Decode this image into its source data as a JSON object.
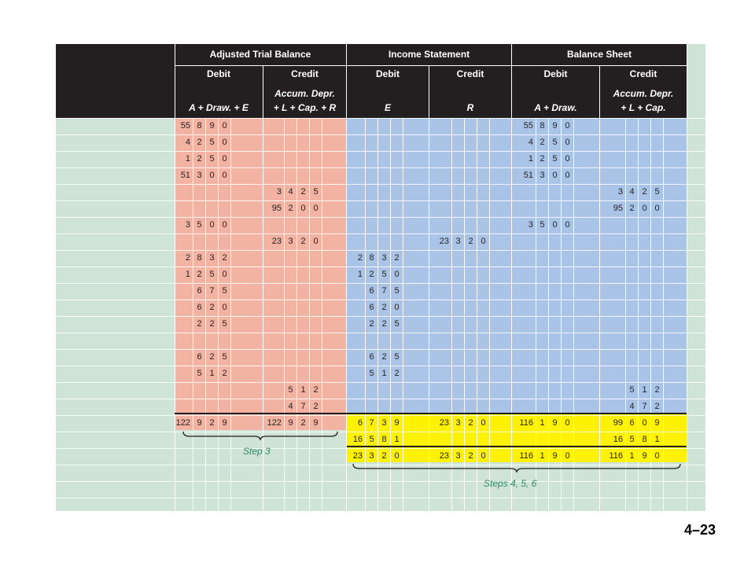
{
  "headers": {
    "atb": "Adjusted Trial Balance",
    "is": "Income Statement",
    "bs": "Balance Sheet",
    "debit": "Debit",
    "credit": "Credit",
    "atb_debit_sub": "A + Draw. + E",
    "atb_credit_sub1": "Accum. Depr.",
    "atb_credit_sub2": "+ L + Cap. + R",
    "is_debit_sub": "E",
    "is_credit_sub": "R",
    "bs_debit_sub": "A + Draw.",
    "bs_credit_sub1": "Accum. Depr.",
    "bs_credit_sub2": "+ L + Cap."
  },
  "rows": [
    {
      "atb_debit": [
        "55",
        "8",
        "9",
        "0"
      ],
      "atb_credit": null,
      "is_debit": null,
      "is_credit": null,
      "bs_debit": [
        "55",
        "8",
        "9",
        "0"
      ],
      "bs_credit": null
    },
    {
      "atb_debit": [
        "4",
        "2",
        "5",
        "0"
      ],
      "atb_credit": null,
      "is_debit": null,
      "is_credit": null,
      "bs_debit": [
        "4",
        "2",
        "5",
        "0"
      ],
      "bs_credit": null
    },
    {
      "atb_debit": [
        "1",
        "2",
        "5",
        "0"
      ],
      "atb_credit": null,
      "is_debit": null,
      "is_credit": null,
      "bs_debit": [
        "1",
        "2",
        "5",
        "0"
      ],
      "bs_credit": null
    },
    {
      "atb_debit": [
        "51",
        "3",
        "0",
        "0"
      ],
      "atb_credit": null,
      "is_debit": null,
      "is_credit": null,
      "bs_debit": [
        "51",
        "3",
        "0",
        "0"
      ],
      "bs_credit": null
    },
    {
      "atb_debit": null,
      "atb_credit": [
        "3",
        "4",
        "2",
        "5"
      ],
      "is_debit": null,
      "is_credit": null,
      "bs_debit": null,
      "bs_credit": [
        "3",
        "4",
        "2",
        "5"
      ]
    },
    {
      "atb_debit": null,
      "atb_credit": [
        "95",
        "2",
        "0",
        "0"
      ],
      "is_debit": null,
      "is_credit": null,
      "bs_debit": null,
      "bs_credit": [
        "95",
        "2",
        "0",
        "0"
      ]
    },
    {
      "atb_debit": [
        "3",
        "5",
        "0",
        "0"
      ],
      "atb_credit": null,
      "is_debit": null,
      "is_credit": null,
      "bs_debit": [
        "3",
        "5",
        "0",
        "0"
      ],
      "bs_credit": null
    },
    {
      "atb_debit": null,
      "atb_credit": [
        "23",
        "3",
        "2",
        "0"
      ],
      "is_debit": null,
      "is_credit": [
        "23",
        "3",
        "2",
        "0"
      ],
      "bs_debit": null,
      "bs_credit": null
    },
    {
      "atb_debit": [
        "2",
        "8",
        "3",
        "2"
      ],
      "atb_credit": null,
      "is_debit": [
        "2",
        "8",
        "3",
        "2"
      ],
      "is_credit": null,
      "bs_debit": null,
      "bs_credit": null
    },
    {
      "atb_debit": [
        "1",
        "2",
        "5",
        "0"
      ],
      "atb_credit": null,
      "is_debit": [
        "1",
        "2",
        "5",
        "0"
      ],
      "is_credit": null,
      "bs_debit": null,
      "bs_credit": null
    },
    {
      "atb_debit": [
        "",
        "6",
        "7",
        "5"
      ],
      "atb_credit": null,
      "is_debit": [
        "",
        "6",
        "7",
        "5"
      ],
      "is_credit": null,
      "bs_debit": null,
      "bs_credit": null
    },
    {
      "atb_debit": [
        "",
        "6",
        "2",
        "0"
      ],
      "atb_credit": null,
      "is_debit": [
        "",
        "6",
        "2",
        "0"
      ],
      "is_credit": null,
      "bs_debit": null,
      "bs_credit": null
    },
    {
      "atb_debit": [
        "",
        "2",
        "2",
        "5"
      ],
      "atb_credit": null,
      "is_debit": [
        "",
        "2",
        "2",
        "5"
      ],
      "is_credit": null,
      "bs_debit": null,
      "bs_credit": null
    },
    {
      "atb_debit": null,
      "atb_credit": null,
      "is_debit": null,
      "is_credit": null,
      "bs_debit": null,
      "bs_credit": null
    },
    {
      "atb_debit": [
        "",
        "6",
        "2",
        "5"
      ],
      "atb_credit": null,
      "is_debit": [
        "",
        "6",
        "2",
        "5"
      ],
      "is_credit": null,
      "bs_debit": null,
      "bs_credit": null
    },
    {
      "atb_debit": [
        "",
        "5",
        "1",
        "2"
      ],
      "atb_credit": null,
      "is_debit": [
        "",
        "5",
        "1",
        "2"
      ],
      "is_credit": null,
      "bs_debit": null,
      "bs_credit": null
    },
    {
      "atb_debit": null,
      "atb_credit": [
        "",
        "5",
        "1",
        "2"
      ],
      "is_debit": null,
      "is_credit": null,
      "bs_debit": null,
      "bs_credit": [
        "",
        "5",
        "1",
        "2"
      ]
    },
    {
      "atb_debit": null,
      "atb_credit": [
        "",
        "4",
        "7",
        "2"
      ],
      "is_debit": null,
      "is_credit": null,
      "bs_debit": null,
      "bs_credit": [
        "",
        "4",
        "7",
        "2"
      ]
    }
  ],
  "totals": [
    {
      "atb_debit": [
        "122",
        "9",
        "2",
        "9"
      ],
      "atb_credit": [
        "122",
        "9",
        "2",
        "9"
      ],
      "is_debit": [
        "6",
        "7",
        "3",
        "9"
      ],
      "is_credit": [
        "23",
        "3",
        "2",
        "0"
      ],
      "bs_debit": [
        "116",
        "1",
        "9",
        "0"
      ],
      "bs_credit": [
        "99",
        "6",
        "0",
        "9"
      ]
    },
    {
      "atb_debit": null,
      "atb_credit": null,
      "is_debit": [
        "16",
        "5",
        "8",
        "1"
      ],
      "is_credit": null,
      "bs_debit": null,
      "bs_credit": [
        "16",
        "5",
        "8",
        "1"
      ]
    },
    {
      "atb_debit": null,
      "atb_credit": null,
      "is_debit": [
        "23",
        "3",
        "2",
        "0"
      ],
      "is_credit": [
        "23",
        "3",
        "2",
        "0"
      ],
      "bs_debit": [
        "116",
        "1",
        "9",
        "0"
      ],
      "bs_credit": [
        "116",
        "1",
        "9",
        "0"
      ]
    }
  ],
  "labels": {
    "step3": "Step 3",
    "steps456": "Steps 4, 5, 6"
  },
  "slide_number": "4–23",
  "colors": {
    "header": "#231f20",
    "atb_fill": "#f2b3a3",
    "is_fill": "#aac4e8",
    "bs_fill": "#aac4e8",
    "highlight": "#fff200",
    "background": "#cfe3d6",
    "label_green": "#2e8b6a"
  }
}
